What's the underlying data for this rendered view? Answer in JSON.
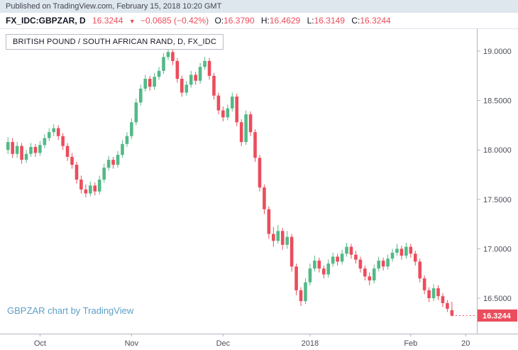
{
  "header": {
    "published_line": "Published on TradingView.com, February 15, 2018 10:20 GMT",
    "symbol": "FX_IDC:GBPZAR, D",
    "last_price": "16.3244",
    "direction_arrow": "▼",
    "change": "−0.0685 (−0.42%)",
    "ohlc": [
      {
        "label": "O:",
        "value": "16.3790"
      },
      {
        "label": "H:",
        "value": "16.4629"
      },
      {
        "label": "L:",
        "value": "16.3149"
      },
      {
        "label": "C:",
        "value": "16.3244"
      }
    ]
  },
  "chart": {
    "legend": "BRITISH POUND / SOUTH AFRICAN RAND, D, FX_IDC",
    "watermark": "GBPZAR chart by TradingView",
    "price_tag": "16.3244"
  },
  "colors": {
    "up": "#53b987",
    "down": "#eb4d5c",
    "price_line": "#eb4d5c",
    "price_tag_bg": "#eb4d5c",
    "price_tag_text": "#ffffff",
    "axis_text": "#4a4e59",
    "axis_line": "#b2b5be",
    "watermark": "#5d9fc7"
  },
  "chart_data": {
    "type": "candlestick",
    "title": "BRITISH POUND / SOUTH AFRICAN RAND, D, FX_IDC",
    "symbol": "GBPZAR",
    "interval": "D",
    "exchange": "FX_IDC",
    "ylim": [
      16.14,
      19.12
    ],
    "last_price": 16.3244,
    "y_ticks": [
      {
        "value": 19.0,
        "label": "19.0000"
      },
      {
        "value": 18.5,
        "label": "18.5000"
      },
      {
        "value": 18.0,
        "label": "18.0000"
      },
      {
        "value": 17.5,
        "label": "17.5000"
      },
      {
        "value": 17.0,
        "label": "17.0000"
      },
      {
        "value": 16.5,
        "label": "16.5000"
      }
    ],
    "x_ticks": [
      {
        "label": "Oct",
        "index": 7
      },
      {
        "label": "Nov",
        "index": 27
      },
      {
        "label": "Dec",
        "index": 47
      },
      {
        "label": "2018",
        "index": 66
      },
      {
        "label": "Feb",
        "index": 88
      },
      {
        "label": "20",
        "index": 100
      }
    ],
    "candles": [
      [
        18.0,
        18.13,
        17.96,
        18.08
      ],
      [
        18.08,
        18.12,
        17.92,
        17.96
      ],
      [
        17.96,
        18.08,
        17.92,
        18.04
      ],
      [
        18.04,
        18.07,
        17.86,
        17.9
      ],
      [
        17.9,
        18.0,
        17.87,
        17.96
      ],
      [
        17.96,
        18.07,
        17.93,
        18.03
      ],
      [
        18.03,
        18.06,
        17.93,
        17.97
      ],
      [
        17.97,
        18.09,
        17.94,
        18.05
      ],
      [
        18.05,
        18.16,
        18.02,
        18.12
      ],
      [
        18.12,
        18.22,
        18.09,
        18.18
      ],
      [
        18.18,
        18.26,
        18.14,
        18.22
      ],
      [
        18.22,
        18.25,
        18.1,
        18.14
      ],
      [
        18.14,
        18.17,
        18.0,
        18.04
      ],
      [
        18.04,
        18.07,
        17.89,
        17.93
      ],
      [
        17.93,
        17.97,
        17.81,
        17.85
      ],
      [
        17.85,
        17.88,
        17.66,
        17.7
      ],
      [
        17.7,
        17.74,
        17.56,
        17.6
      ],
      [
        17.6,
        17.65,
        17.52,
        17.56
      ],
      [
        17.56,
        17.68,
        17.53,
        17.64
      ],
      [
        17.64,
        17.67,
        17.54,
        17.58
      ],
      [
        17.58,
        17.74,
        17.55,
        17.7
      ],
      [
        17.7,
        17.86,
        17.67,
        17.82
      ],
      [
        17.82,
        17.94,
        17.79,
        17.9
      ],
      [
        17.9,
        17.93,
        17.81,
        17.85
      ],
      [
        17.85,
        17.99,
        17.82,
        17.95
      ],
      [
        17.95,
        18.1,
        17.92,
        18.06
      ],
      [
        18.06,
        18.18,
        18.03,
        18.14
      ],
      [
        18.14,
        18.32,
        18.11,
        18.28
      ],
      [
        18.28,
        18.52,
        18.25,
        18.48
      ],
      [
        18.48,
        18.66,
        18.45,
        18.62
      ],
      [
        18.62,
        18.76,
        18.59,
        18.72
      ],
      [
        18.72,
        18.75,
        18.6,
        18.64
      ],
      [
        18.64,
        18.78,
        18.61,
        18.74
      ],
      [
        18.74,
        18.84,
        18.71,
        18.8
      ],
      [
        18.8,
        18.98,
        18.77,
        18.94
      ],
      [
        18.94,
        19.05,
        18.91,
        18.99
      ],
      [
        18.99,
        19.02,
        18.86,
        18.9
      ],
      [
        18.9,
        18.93,
        18.68,
        18.72
      ],
      [
        18.72,
        18.75,
        18.54,
        18.58
      ],
      [
        18.58,
        18.7,
        18.55,
        18.66
      ],
      [
        18.66,
        18.8,
        18.63,
        18.76
      ],
      [
        18.76,
        18.79,
        18.66,
        18.7
      ],
      [
        18.7,
        18.88,
        18.67,
        18.84
      ],
      [
        18.84,
        18.94,
        18.81,
        18.9
      ],
      [
        18.9,
        18.93,
        18.71,
        18.75
      ],
      [
        18.75,
        18.78,
        18.51,
        18.55
      ],
      [
        18.55,
        18.58,
        18.36,
        18.4
      ],
      [
        18.4,
        18.44,
        18.29,
        18.33
      ],
      [
        18.33,
        18.46,
        18.3,
        18.42
      ],
      [
        18.42,
        18.58,
        18.39,
        18.54
      ],
      [
        18.54,
        18.57,
        18.24,
        18.28
      ],
      [
        18.28,
        18.31,
        18.04,
        18.08
      ],
      [
        18.08,
        18.4,
        18.05,
        18.36
      ],
      [
        18.36,
        18.39,
        18.14,
        18.18
      ],
      [
        18.18,
        18.21,
        17.88,
        17.92
      ],
      [
        17.92,
        17.95,
        17.58,
        17.62
      ],
      [
        17.62,
        17.65,
        17.35,
        17.4
      ],
      [
        17.4,
        17.43,
        17.1,
        17.15
      ],
      [
        17.15,
        17.22,
        17.02,
        17.08
      ],
      [
        17.08,
        17.24,
        17.05,
        17.18
      ],
      [
        17.18,
        17.21,
        16.99,
        17.04
      ],
      [
        17.04,
        17.18,
        17.0,
        17.12
      ],
      [
        17.12,
        17.15,
        16.77,
        16.82
      ],
      [
        16.82,
        16.85,
        16.53,
        16.58
      ],
      [
        16.58,
        16.61,
        16.42,
        16.47
      ],
      [
        16.47,
        16.7,
        16.44,
        16.66
      ],
      [
        16.66,
        16.85,
        16.63,
        16.8
      ],
      [
        16.8,
        16.93,
        16.77,
        16.88
      ],
      [
        16.88,
        16.91,
        16.76,
        16.8
      ],
      [
        16.8,
        16.83,
        16.7,
        16.74
      ],
      [
        16.74,
        16.89,
        16.71,
        16.85
      ],
      [
        16.85,
        16.96,
        16.82,
        16.92
      ],
      [
        16.92,
        16.95,
        16.83,
        16.87
      ],
      [
        16.87,
        16.99,
        16.84,
        16.95
      ],
      [
        16.95,
        17.06,
        16.92,
        17.02
      ],
      [
        17.02,
        17.05,
        16.9,
        16.94
      ],
      [
        16.94,
        16.98,
        16.85,
        16.89
      ],
      [
        16.89,
        16.92,
        16.76,
        16.8
      ],
      [
        16.8,
        16.83,
        16.68,
        16.72
      ],
      [
        16.72,
        16.76,
        16.63,
        16.68
      ],
      [
        16.68,
        16.84,
        16.65,
        16.8
      ],
      [
        16.8,
        16.92,
        16.77,
        16.88
      ],
      [
        16.88,
        16.91,
        16.78,
        16.82
      ],
      [
        16.82,
        16.94,
        16.79,
        16.9
      ],
      [
        16.9,
        17.0,
        16.87,
        16.96
      ],
      [
        16.96,
        17.05,
        16.93,
        17.0
      ],
      [
        17.0,
        17.03,
        16.89,
        16.93
      ],
      [
        16.93,
        17.06,
        16.9,
        17.02
      ],
      [
        17.02,
        17.05,
        16.91,
        16.95
      ],
      [
        16.95,
        16.98,
        16.83,
        16.87
      ],
      [
        16.87,
        16.9,
        16.66,
        16.7
      ],
      [
        16.7,
        16.73,
        16.54,
        16.58
      ],
      [
        16.58,
        16.61,
        16.46,
        16.5
      ],
      [
        16.5,
        16.64,
        16.47,
        16.6
      ],
      [
        16.6,
        16.63,
        16.48,
        16.52
      ],
      [
        16.52,
        16.55,
        16.41,
        16.45
      ],
      [
        16.45,
        16.48,
        16.36,
        16.3929
      ],
      [
        16.379,
        16.4629,
        16.3149,
        16.3244
      ]
    ]
  }
}
